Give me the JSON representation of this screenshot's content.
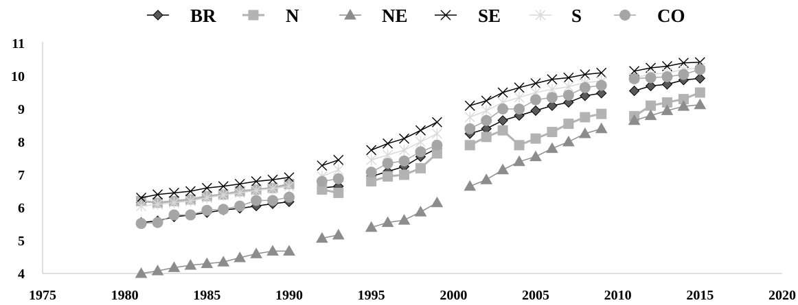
{
  "chart_data": {
    "type": "line",
    "title": "",
    "xlabel": "",
    "ylabel": "",
    "xlim": [
      1975,
      2020
    ],
    "ylim": [
      4,
      11
    ],
    "x_ticks": [
      "1975",
      "1980",
      "1985",
      "1990",
      "1995",
      "2000",
      "2005",
      "2010",
      "2015",
      "2020"
    ],
    "y_ticks": [
      "4",
      "5",
      "6",
      "7",
      "8",
      "9",
      "10",
      "11"
    ],
    "grid": false,
    "legend_position": "top",
    "x": [
      1981,
      1982,
      1983,
      1984,
      1985,
      1986,
      1987,
      1988,
      1989,
      1990,
      1992,
      1993,
      1995,
      1996,
      1997,
      1998,
      1999,
      2001,
      2002,
      2003,
      2004,
      2005,
      2006,
      2007,
      2008,
      2009,
      2011,
      2012,
      2013,
      2014,
      2015
    ],
    "segments": [
      [
        1981,
        1990
      ],
      [
        1992,
        1993
      ],
      [
        1995,
        1999
      ],
      [
        2001,
        2009
      ],
      [
        2011,
        2015
      ]
    ],
    "series": [
      {
        "name": "BR",
        "marker": "diamond",
        "color": "#595959",
        "stroke": "#000000",
        "values": [
          5.55,
          5.6,
          5.72,
          5.78,
          5.85,
          5.93,
          5.98,
          6.05,
          6.12,
          6.18,
          6.6,
          6.65,
          6.95,
          7.1,
          7.25,
          7.55,
          7.8,
          8.25,
          8.4,
          8.65,
          8.8,
          8.95,
          9.1,
          9.2,
          9.4,
          9.48,
          9.55,
          9.7,
          9.75,
          9.88,
          9.93
        ]
      },
      {
        "name": "N",
        "marker": "square",
        "color": "#b3b3b3",
        "stroke": "#b3b3b3",
        "values": [
          6.2,
          6.15,
          6.2,
          6.25,
          6.35,
          6.4,
          6.5,
          6.55,
          6.6,
          6.72,
          6.55,
          6.45,
          6.8,
          6.95,
          7.0,
          7.2,
          7.65,
          7.9,
          8.15,
          8.35,
          7.9,
          8.1,
          8.3,
          8.55,
          8.75,
          8.85,
          8.78,
          9.1,
          9.2,
          9.3,
          9.5
        ]
      },
      {
        "name": "NE",
        "marker": "triangle",
        "color": "#8c8c8c",
        "stroke": "#8c8c8c",
        "values": [
          4.0,
          4.08,
          4.18,
          4.25,
          4.3,
          4.35,
          4.48,
          4.6,
          4.68,
          4.68,
          5.07,
          5.17,
          5.4,
          5.55,
          5.62,
          5.87,
          6.15,
          6.65,
          6.85,
          7.15,
          7.4,
          7.55,
          7.8,
          8.0,
          8.25,
          8.4,
          8.65,
          8.8,
          8.95,
          9.08,
          9.13
        ]
      },
      {
        "name": "SE",
        "marker": "x",
        "color": "#000000",
        "stroke": "#000000",
        "values": [
          6.3,
          6.4,
          6.45,
          6.5,
          6.6,
          6.65,
          6.72,
          6.8,
          6.85,
          6.92,
          7.28,
          7.45,
          7.75,
          7.95,
          8.1,
          8.35,
          8.6,
          9.1,
          9.25,
          9.5,
          9.65,
          9.78,
          9.9,
          9.95,
          10.05,
          10.1,
          10.15,
          10.25,
          10.3,
          10.4,
          10.42
        ]
      },
      {
        "name": "S",
        "marker": "asterisk",
        "color": "#d9d9d9",
        "stroke": "#d9d9d9",
        "values": [
          6.05,
          6.1,
          6.15,
          6.2,
          6.3,
          6.38,
          6.45,
          6.52,
          6.58,
          6.65,
          6.95,
          7.15,
          7.45,
          7.6,
          7.75,
          8.0,
          8.25,
          8.75,
          8.95,
          9.2,
          9.35,
          9.5,
          9.6,
          9.68,
          9.8,
          9.85,
          9.95,
          10.05,
          10.1,
          10.2,
          10.25
        ]
      },
      {
        "name": "CO",
        "marker": "circle",
        "color": "#a6a6a6",
        "stroke": "#a6a6a6",
        "values": [
          5.52,
          5.55,
          5.78,
          5.78,
          5.92,
          5.95,
          6.05,
          6.22,
          6.22,
          6.32,
          6.8,
          6.88,
          7.08,
          7.35,
          7.42,
          7.7,
          7.9,
          8.4,
          8.65,
          9.0,
          9.0,
          9.28,
          9.35,
          9.42,
          9.65,
          9.72,
          9.92,
          9.95,
          9.98,
          10.05,
          10.2
        ]
      }
    ]
  }
}
